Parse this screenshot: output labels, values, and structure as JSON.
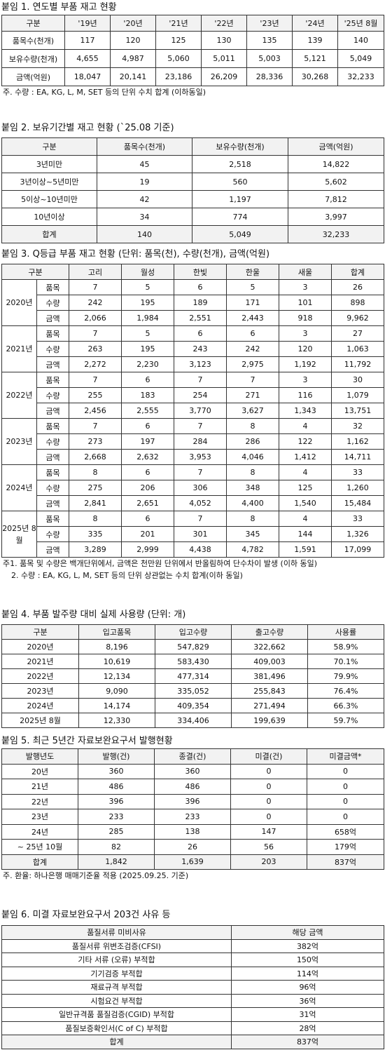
{
  "sections": [
    {
      "title": "붙임 1. 연도별 부품 재고 현황",
      "table": {
        "header": [
          "구분",
          "'19년",
          "'20년",
          "'21년",
          "'22년",
          "'23년",
          "'24년",
          "'25년 8월"
        ],
        "rows": [
          [
            "품목수(천개)",
            "117",
            "120",
            "125",
            "130",
            "135",
            "139",
            "140"
          ],
          [
            "보유수량(천개)",
            "4,655",
            "4,987",
            "5,060",
            "5,011",
            "5,003",
            "5,121",
            "5,049"
          ],
          [
            "금액(억원)",
            "18,047",
            "20,141",
            "23,186",
            "26,209",
            "28,336",
            "30,268",
            "32,233"
          ]
        ]
      },
      "notes": [
        "주. 수량 : EA, KG, L, M, SET 등의 단위 수치 합계 (이하동일)"
      ]
    },
    {
      "title": "붙임 2. 보유기간별 재고 현황 (`25.08 기준)",
      "table": {
        "header": [
          "구분",
          "품목수(천개)",
          "보유수량(천개)",
          "금액(억원)"
        ],
        "rows": [
          [
            "3년미만",
            "45",
            "2,518",
            "14,822"
          ],
          [
            "3년이상~5년미만",
            "19",
            "560",
            "5,602"
          ],
          [
            "5이상~10년미만",
            "42",
            "1,197",
            "7,812"
          ],
          [
            "10년이상",
            "34",
            "774",
            "3,997"
          ],
          [
            "합계",
            "140",
            "5,049",
            "32,233"
          ]
        ]
      },
      "notes": []
    },
    {
      "title": "붙임 3. Q등급 부품 재고 현황 (단위: 품목(천), 수량(천개), 금액(억원)",
      "table": {
        "header": [
          "구분",
          "고리",
          "월성",
          "한빛",
          "한울",
          "새울",
          "합계"
        ],
        "groups": [
          {
            "label": "2020년",
            "rows": [
              [
                "품목",
                "7",
                "5",
                "6",
                "5",
                "3",
                "26"
              ],
              [
                "수량",
                "242",
                "195",
                "189",
                "171",
                "101",
                "898"
              ],
              [
                "금액",
                "2,066",
                "1,984",
                "2,551",
                "2,443",
                "918",
                "9,962"
              ]
            ]
          },
          {
            "label": "2021년",
            "rows": [
              [
                "품목",
                "7",
                "5",
                "6",
                "6",
                "3",
                "27"
              ],
              [
                "수량",
                "263",
                "195",
                "243",
                "242",
                "120",
                "1,063"
              ],
              [
                "금액",
                "2,272",
                "2,230",
                "3,123",
                "2,975",
                "1,192",
                "11,792"
              ]
            ]
          },
          {
            "label": "2022년",
            "rows": [
              [
                "품목",
                "7",
                "6",
                "7",
                "7",
                "3",
                "30"
              ],
              [
                "수량",
                "255",
                "183",
                "254",
                "271",
                "116",
                "1,079"
              ],
              [
                "금액",
                "2,456",
                "2,555",
                "3,770",
                "3,627",
                "1,343",
                "13,751"
              ]
            ]
          },
          {
            "label": "2023년",
            "rows": [
              [
                "품목",
                "7",
                "6",
                "7",
                "8",
                "4",
                "32"
              ],
              [
                "수량",
                "273",
                "197",
                "284",
                "286",
                "122",
                "1,162"
              ],
              [
                "금액",
                "2,668",
                "2,632",
                "3,953",
                "4,046",
                "1,412",
                "14,711"
              ]
            ]
          },
          {
            "label": "2024년",
            "rows": [
              [
                "품목",
                "8",
                "6",
                "7",
                "8",
                "4",
                "33"
              ],
              [
                "수량",
                "275",
                "206",
                "306",
                "348",
                "125",
                "1,260"
              ],
              [
                "금액",
                "2,841",
                "2,651",
                "4,052",
                "4,400",
                "1,540",
                "15,484"
              ]
            ]
          },
          {
            "label": "2025년 8월",
            "rows": [
              [
                "품목",
                "8",
                "6",
                "7",
                "8",
                "4",
                "33"
              ],
              [
                "수량",
                "335",
                "201",
                "301",
                "345",
                "144",
                "1,326"
              ],
              [
                "금액",
                "3,289",
                "2,999",
                "4,438",
                "4,782",
                "1,591",
                "17,099"
              ]
            ]
          }
        ]
      },
      "notes": [
        "주1. 품목 및 수량은 백개단위에서, 금액은 천만원 단위에서 반올림하여 단수차이 발생 (이하 동일)",
        "2. 수량 : EA, KG, L, M, SET 등의 단위 상관없는 수치 합계(이하 동일)"
      ]
    },
    {
      "title": "붙임 4. 부품 발주량 대비 실제 사용량 (단위: 개)",
      "table": {
        "header": [
          "구분",
          "입고품목",
          "입고수량",
          "출고수량",
          "사용률"
        ],
        "rows": [
          [
            "2020년",
            "8,196",
            "547,829",
            "322,662",
            "58.9%"
          ],
          [
            "2021년",
            "10,619",
            "583,430",
            "409,003",
            "70.1%"
          ],
          [
            "2022년",
            "12,134",
            "477,314",
            "381,496",
            "79.9%"
          ],
          [
            "2023년",
            "9,090",
            "335,052",
            "255,843",
            "76.4%"
          ],
          [
            "2024년",
            "14,174",
            "409,354",
            "271,494",
            "66.3%"
          ],
          [
            "2025년 8월",
            "12,330",
            "334,406",
            "199,639",
            "59.7%"
          ]
        ]
      },
      "notes": []
    },
    {
      "title": "붙임 5. 최근 5년간 자료보완요구서 발행현황",
      "table": {
        "header": [
          "발행년도",
          "발행(건)",
          "종결(건)",
          "미결(건)",
          "미결금액*"
        ],
        "rows": [
          [
            "20년",
            "360",
            "360",
            "0",
            "0"
          ],
          [
            "21년",
            "486",
            "486",
            "0",
            "0"
          ],
          [
            "22년",
            "396",
            "396",
            "0",
            "0"
          ],
          [
            "23년",
            "233",
            "233",
            "0",
            "0"
          ],
          [
            "24년",
            "285",
            "138",
            "147",
            "658억"
          ],
          [
            "~ 25년 10월",
            "82",
            "26",
            "56",
            "179억"
          ],
          [
            "합계",
            "1,842",
            "1,639",
            "203",
            "837억"
          ]
        ]
      },
      "notes": [
        "주. 환율: 하나은행 매매기준율 적용 (2025.09.25. 기준)"
      ]
    },
    {
      "title": "붙임 6. 미결 자료보완요구서 203건 사유 등",
      "table": {
        "header": [
          "품질서류 미비사유",
          "해당 금액"
        ],
        "rows": [
          [
            "품질서류 위변조검증(CFSI)",
            "382억"
          ],
          [
            "기타 서류 (오류) 부적합",
            "150억"
          ],
          [
            "기기검증 부적합",
            "114억"
          ],
          [
            "재료규격 부적합",
            "96억"
          ],
          [
            "시험요건 부적합",
            "36억"
          ],
          [
            "일반규격품 품질검증(CGID) 부적합",
            "31억"
          ],
          [
            "품질보증확인서(C of C) 부적합",
            "28억"
          ],
          [
            "합계",
            "837억"
          ]
        ]
      },
      "notes": []
    }
  ]
}
